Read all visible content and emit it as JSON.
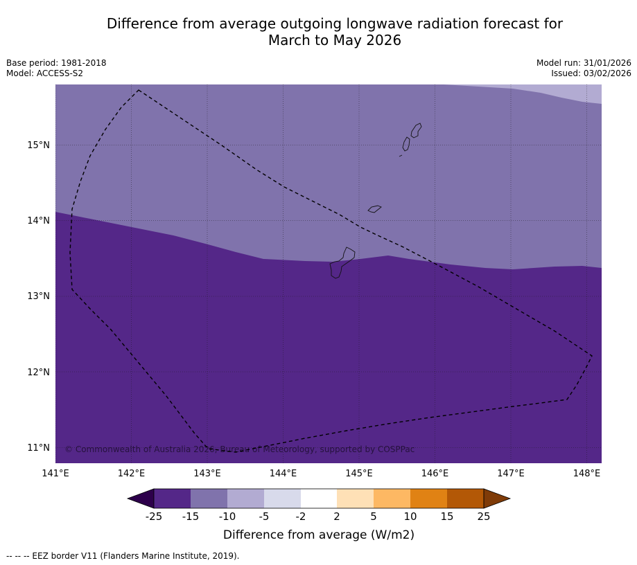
{
  "title": {
    "line1": "Difference from average outgoing longwave radiation forecast for",
    "line2": "March to May 2026"
  },
  "meta": {
    "base_period": "Base period: 1981-2018",
    "model": "Model: ACCESS-S2",
    "model_run": "Model run: 31/01/2026",
    "issued": "Issued: 03/02/2026"
  },
  "map": {
    "lon_labels": [
      "141°E",
      "142°E",
      "143°E",
      "144°E",
      "145°E",
      "146°E",
      "147°E",
      "148°E"
    ],
    "lat_labels": [
      "15°N",
      "14°N",
      "13°N",
      "12°N",
      "11°N"
    ],
    "copyright": "© Commonwealth of Australia 2026, Bureau of Meteorology, supported by COSPPac"
  },
  "colorbar": {
    "label": "Difference from average (W/m2)",
    "ticks": [
      "-25",
      "-15",
      "-10",
      "-5",
      "-2",
      "2",
      "5",
      "10",
      "15",
      "25"
    ],
    "colors": {
      "below": "#2d004b",
      "bins": [
        "#542788",
        "#8073ac",
        "#b2abd2",
        "#d8daeb",
        "#ffffff",
        "#fee0b6",
        "#fdb863",
        "#e08214",
        "#b35806"
      ],
      "above": "#7f3b08"
    }
  },
  "footer": {
    "eez": "--  --  -- EEZ border V11 (Flanders Marine Institute, 2019)."
  }
}
